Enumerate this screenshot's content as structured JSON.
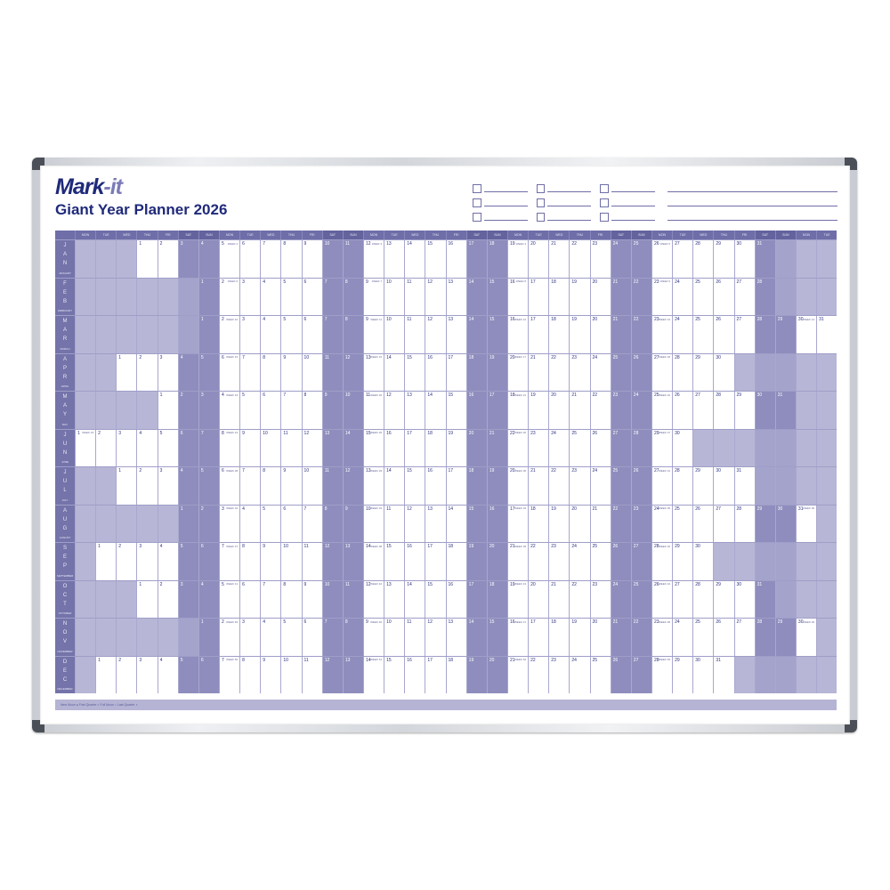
{
  "brand": {
    "logo_main": "Mark",
    "logo_suffix": "-it",
    "title": "Giant Year Planner 2026"
  },
  "year": 2026,
  "weekdays": [
    "MON",
    "TUE",
    "WED",
    "THU",
    "FRI",
    "SAT",
    "SUN"
  ],
  "week_prefix": "WEEK",
  "months": [
    {
      "abbr": "JAN",
      "name": "JANUARY"
    },
    {
      "abbr": "FEB",
      "name": "FEBRUARY"
    },
    {
      "abbr": "MAR",
      "name": "MARCH"
    },
    {
      "abbr": "APR",
      "name": "APRIL"
    },
    {
      "abbr": "MAY",
      "name": "MAY"
    },
    {
      "abbr": "JUN",
      "name": "JUNE"
    },
    {
      "abbr": "JUL",
      "name": "JULY"
    },
    {
      "abbr": "AUG",
      "name": "AUGUST"
    },
    {
      "abbr": "SEP",
      "name": "SEPTEMBER"
    },
    {
      "abbr": "OCT",
      "name": "OCTOBER"
    },
    {
      "abbr": "NOV",
      "name": "NOVEMBER"
    },
    {
      "abbr": "DEC",
      "name": "DECEMBER"
    }
  ],
  "footer": {
    "legend": "New Moon ● First Quarter ◐ Full Moon ○ Last Quarter ◑"
  },
  "colors": {
    "navy": "#1f2a7a",
    "header": "#6f6ea8",
    "weekend": "#8e8dbd",
    "outside": "#b7b6d6"
  }
}
